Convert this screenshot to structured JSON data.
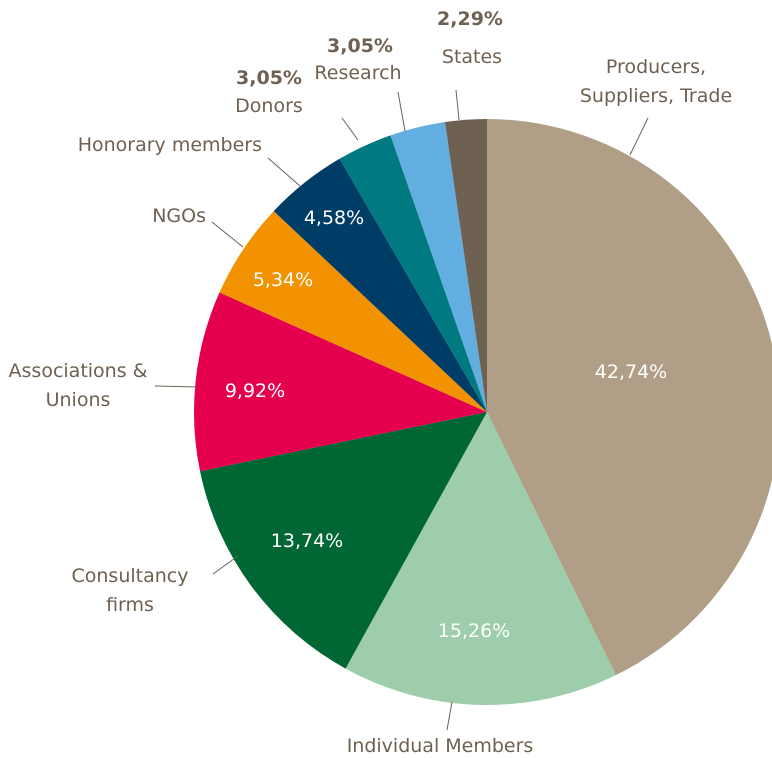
{
  "chart_data": {
    "type": "pie",
    "categories": [
      "Producers, Suppliers, Trade",
      "Individual Members",
      "Consultancy firms",
      "Associations & Unions",
      "NGOs",
      "Honorary members",
      "Donors",
      "Research",
      "States"
    ],
    "values": [
      42.74,
      15.26,
      13.74,
      9.92,
      5.34,
      4.58,
      3.05,
      3.05,
      2.29
    ],
    "value_labels": [
      "42,74%",
      "15,26%",
      "13,74%",
      "9,92%",
      "5,34%",
      "4,58%",
      "3,05%",
      "3,05%",
      "2,29%"
    ],
    "colors": [
      "#b09e86",
      "#9dcdaa",
      "#006633",
      "#e4004f",
      "#f39200",
      "#003d66",
      "#007a80",
      "#63aee0",
      "#6e6151"
    ]
  }
}
